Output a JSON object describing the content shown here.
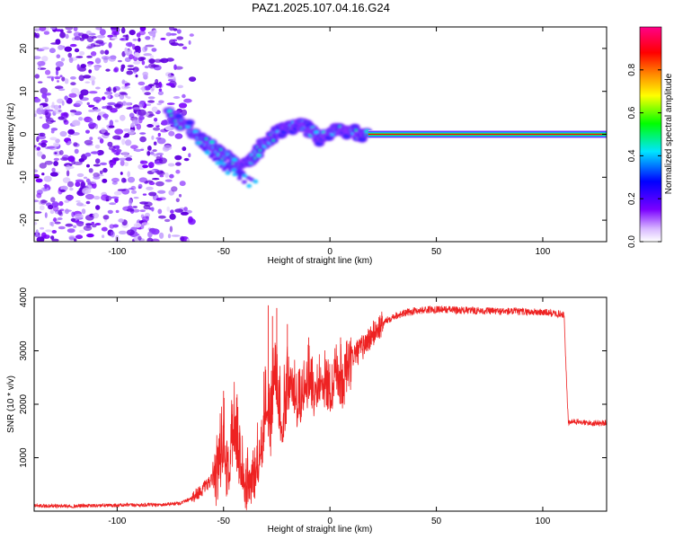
{
  "figure": {
    "title": "PAZ1.2025.107.04.16.G24"
  },
  "chart_data": [
    {
      "type": "heatmap",
      "title": "PAZ1.2025.107.04.16.G24",
      "xlabel": "Height of straight line (km)",
      "ylabel": "Frequency (Hz)",
      "xlim": [
        -139,
        130
      ],
      "ylim": [
        -25,
        25
      ],
      "xticks": [
        -100,
        -50,
        0,
        50,
        100
      ],
      "yticks": [
        -20,
        -10,
        0,
        10,
        20
      ],
      "colorbar": {
        "label": "Normalized spectral amplitude",
        "range": [
          0,
          1
        ],
        "ticks": [
          "0.0",
          "0.2",
          "0.4",
          "0.6",
          "0.8"
        ],
        "colors": [
          "#ffffff",
          "#7a00ff",
          "#0000ff",
          "#00e5ff",
          "#00ff00",
          "#ffff00",
          "#ff8800",
          "#ff0000",
          "#ff0088"
        ]
      },
      "ridge": {
        "x": [
          -76,
          -71,
          -66,
          -61,
          -56,
          -52,
          -47,
          -42,
          -38,
          -34,
          -30,
          -26,
          -22,
          -18,
          -14,
          -11,
          -8,
          -5,
          -1,
          3,
          7,
          10,
          14,
          18,
          130
        ],
        "frequency": [
          4.5,
          3.0,
          1.5,
          -1.0,
          -2.5,
          -4.0,
          -6.0,
          -8.0,
          -6.0,
          -4.0,
          -1.5,
          0.0,
          1.0,
          1.5,
          2.5,
          1.5,
          0.5,
          -1.0,
          0.0,
          1.5,
          0.5,
          1.0,
          0.0,
          0.0,
          0.0
        ]
      },
      "tone_line": {
        "frequency": 0.0,
        "x_start": 18,
        "x_end": 130
      },
      "noise_region_x": [
        -139,
        -64
      ]
    },
    {
      "type": "line",
      "xlabel": "Height of straight line (km)",
      "ylabel": "SNR (10 * v/v)",
      "xlim": [
        -139,
        130
      ],
      "ylim": [
        0,
        4000
      ],
      "xticks": [
        -100,
        -50,
        0,
        50,
        100
      ],
      "yticks": [
        1000,
        2000,
        3000,
        4000
      ],
      "color": "#ee2222",
      "series": [
        {
          "x": [
            -139,
            -120,
            -100,
            -80,
            -70,
            -65,
            -60,
            -55,
            -52,
            -50,
            -48,
            -45,
            -42,
            -40,
            -38,
            -35,
            -32,
            -30,
            -28,
            -26,
            -24,
            -22,
            -20,
            -18,
            -15,
            -12,
            -10,
            -8,
            -5,
            -2,
            0,
            3,
            6,
            10,
            14,
            18,
            22,
            26,
            30,
            35,
            40,
            50,
            60,
            70,
            80,
            90,
            100,
            105,
            110,
            111,
            112,
            115,
            120,
            130
          ],
          "y": [
            100,
            95,
            110,
            120,
            150,
            250,
            400,
            600,
            1100,
            1500,
            900,
            1800,
            1200,
            700,
            800,
            1100,
            1500,
            2400,
            1600,
            2900,
            2300,
            1900,
            2500,
            2600,
            2100,
            2300,
            2700,
            2400,
            2500,
            2600,
            2200,
            2800,
            2500,
            2900,
            3000,
            3200,
            3400,
            3550,
            3650,
            3700,
            3750,
            3780,
            3760,
            3750,
            3740,
            3730,
            3720,
            3700,
            3680,
            2600,
            1650,
            1680,
            1650,
            1650
          ]
        }
      ],
      "spikes": [
        {
          "x": -50,
          "y": 2250
        },
        {
          "x": -29,
          "y": 3850
        },
        {
          "x": -27,
          "y": 3650
        },
        {
          "x": -25,
          "y": 3800
        },
        {
          "x": -20,
          "y": 3500
        },
        {
          "x": -10,
          "y": 3250
        },
        {
          "x": 5,
          "y": 3250
        }
      ]
    }
  ]
}
